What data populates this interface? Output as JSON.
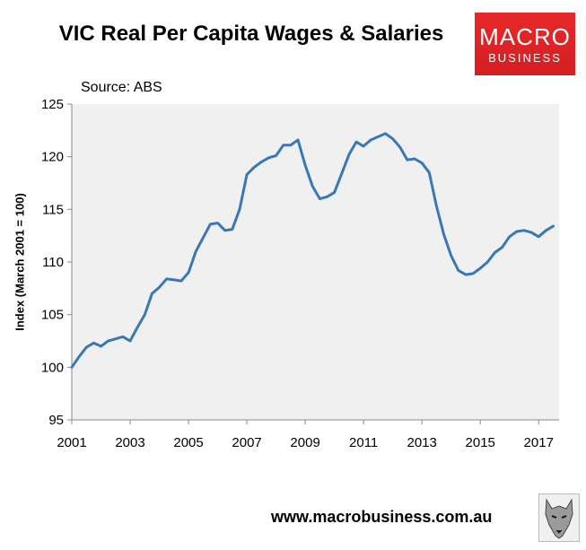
{
  "header": {
    "title": "VIC Real Per Capita Wages & Salaries",
    "source": "Source: ABS",
    "logo_line1": "MACRO",
    "logo_line2": "BUSINESS"
  },
  "footer": {
    "url": "www.macrobusiness.com.au"
  },
  "colors": {
    "line": "#3a78b5",
    "plot_bg": "#f0f0f0",
    "logo": "#e0262a"
  },
  "chart_data": {
    "type": "line",
    "title": "VIC Real Per Capita Wages & Salaries",
    "ylabel": "Index (March 2001 = 100)",
    "xlabel": "",
    "ylim": [
      95,
      125
    ],
    "xlim": [
      2001,
      2017.7
    ],
    "grid": false,
    "y_ticks": [
      "95",
      "100",
      "105",
      "110",
      "115",
      "120",
      "125"
    ],
    "x_ticks": [
      "2001",
      "2003",
      "2005",
      "2007",
      "2009",
      "2011",
      "2013",
      "2015",
      "2017"
    ],
    "series": [
      {
        "x": [
          2001.0,
          2001.25,
          2001.5,
          2001.75,
          2002.0,
          2002.25,
          2002.5,
          2002.75,
          2003.0,
          2003.25,
          2003.5,
          2003.75,
          2004.0,
          2004.25,
          2004.5,
          2004.75,
          2005.0,
          2005.25,
          2005.5,
          2005.75,
          2006.0,
          2006.25,
          2006.5,
          2006.75,
          2007.0,
          2007.25,
          2007.5,
          2007.75,
          2008.0,
          2008.25,
          2008.5,
          2008.75,
          2009.0,
          2009.25,
          2009.5,
          2009.75,
          2010.0,
          2010.25,
          2010.5,
          2010.75,
          2011.0,
          2011.25,
          2011.5,
          2011.75,
          2012.0,
          2012.25,
          2012.5,
          2012.75,
          2013.0,
          2013.25,
          2013.5,
          2013.75,
          2014.0,
          2014.25,
          2014.5,
          2014.75,
          2015.0,
          2015.25,
          2015.5,
          2015.75,
          2016.0,
          2016.25,
          2016.5,
          2016.75,
          2017.0,
          2017.25,
          2017.5
        ],
        "values": [
          100.0,
          101.0,
          101.9,
          102.3,
          102.0,
          102.5,
          102.7,
          102.9,
          102.5,
          103.8,
          105.0,
          107.0,
          107.6,
          108.4,
          108.3,
          108.2,
          109.0,
          111.0,
          112.3,
          113.6,
          113.7,
          113.0,
          113.1,
          115.0,
          118.3,
          119.0,
          119.5,
          119.9,
          120.1,
          121.1,
          121.1,
          121.6,
          119.2,
          117.2,
          116.0,
          116.2,
          116.6,
          118.4,
          120.2,
          121.4,
          121.0,
          121.6,
          121.9,
          122.2,
          121.7,
          120.9,
          119.7,
          119.8,
          119.4,
          118.5,
          115.3,
          112.6,
          110.6,
          109.2,
          108.8,
          108.9,
          109.4,
          110.0,
          110.9,
          111.4,
          112.4,
          112.9,
          113.0,
          112.8,
          112.4,
          113.0,
          113.4
        ]
      }
    ]
  }
}
